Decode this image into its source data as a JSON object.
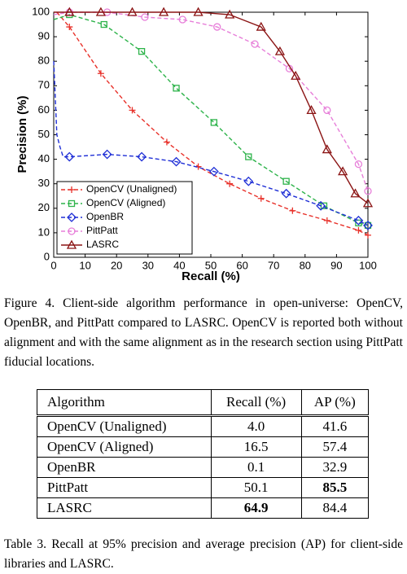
{
  "chart_data": {
    "type": "line",
    "xlabel": "Recall (%)",
    "ylabel": "Precision (%)",
    "xlim": [
      0,
      100
    ],
    "ylim": [
      0,
      100
    ],
    "xticks": [
      0,
      10,
      20,
      30,
      40,
      50,
      60,
      70,
      80,
      90,
      100
    ],
    "yticks": [
      0,
      10,
      20,
      30,
      40,
      50,
      60,
      70,
      80,
      90,
      100
    ],
    "legend": "lower left",
    "series": [
      {
        "name": "OpenCV (Unaligned)",
        "color": "#e8312a",
        "marker": "plus",
        "dashed": true,
        "x": [
          1,
          5,
          15,
          25,
          36,
          46,
          56,
          66,
          76,
          87,
          97,
          100
        ],
        "values": [
          100,
          94,
          75,
          60,
          47,
          37,
          30,
          24,
          19,
          15,
          11,
          9
        ]
      },
      {
        "name": "OpenCV (Aligned)",
        "color": "#2db34a",
        "marker": "square",
        "dashed": true,
        "x": [
          0,
          5,
          16,
          28,
          39,
          51,
          62,
          74,
          86,
          97,
          100
        ],
        "values": [
          97,
          99,
          95,
          84,
          69,
          55,
          41,
          31,
          21,
          14,
          13
        ]
      },
      {
        "name": "OpenBR",
        "color": "#1f2fd6",
        "marker": "diamond",
        "dashed": true,
        "x": [
          0,
          1,
          2,
          3,
          5,
          17,
          28,
          39,
          51,
          62,
          74,
          85,
          97,
          100
        ],
        "values": [
          80,
          50,
          45,
          41,
          41,
          42,
          41,
          39,
          35,
          31,
          26,
          21,
          15,
          13
        ]
      },
      {
        "name": "PittPatt",
        "color": "#e77fd9",
        "marker": "circle",
        "dashed": true,
        "x": [
          0,
          5,
          17,
          29,
          41,
          52,
          64,
          75,
          87,
          97,
          100
        ],
        "values": [
          99,
          100,
          100,
          98,
          97,
          94,
          87,
          77,
          60,
          38,
          27
        ]
      },
      {
        "name": "LASRC",
        "color": "#8b1414",
        "marker": "triangle",
        "dashed": false,
        "x": [
          0,
          5,
          15,
          25,
          35,
          46,
          56,
          66,
          72,
          77,
          82,
          87,
          92,
          96,
          100
        ],
        "values": [
          100,
          100,
          100,
          100,
          100,
          100,
          99,
          94,
          84,
          74,
          60,
          44,
          35,
          26,
          22
        ]
      }
    ]
  },
  "figure_caption": "Figure 4. Client-side algorithm performance in open-universe: OpenCV, OpenBR, and PittPatt compared to LASRC. OpenCV is reported both without alignment and with the same alignment as in the research section using PittPatt fiducial locations.",
  "table": {
    "header": [
      "Algorithm",
      "Recall (%)",
      "AP (%)"
    ],
    "rows": [
      [
        "OpenCV (Unaligned)",
        "4.0",
        "41.6"
      ],
      [
        "OpenCV (Aligned)",
        "16.5",
        "57.4"
      ],
      [
        "OpenBR",
        "0.1",
        "32.9"
      ],
      [
        "PittPatt",
        "50.1",
        "85.5"
      ],
      [
        "LASRC",
        "64.9",
        "84.4"
      ]
    ],
    "bold": [
      [
        3,
        2
      ],
      [
        4,
        1
      ]
    ]
  },
  "table_caption": "Table 3. Recall at 95% precision and average precision (AP) for client-side libraries and LASRC."
}
